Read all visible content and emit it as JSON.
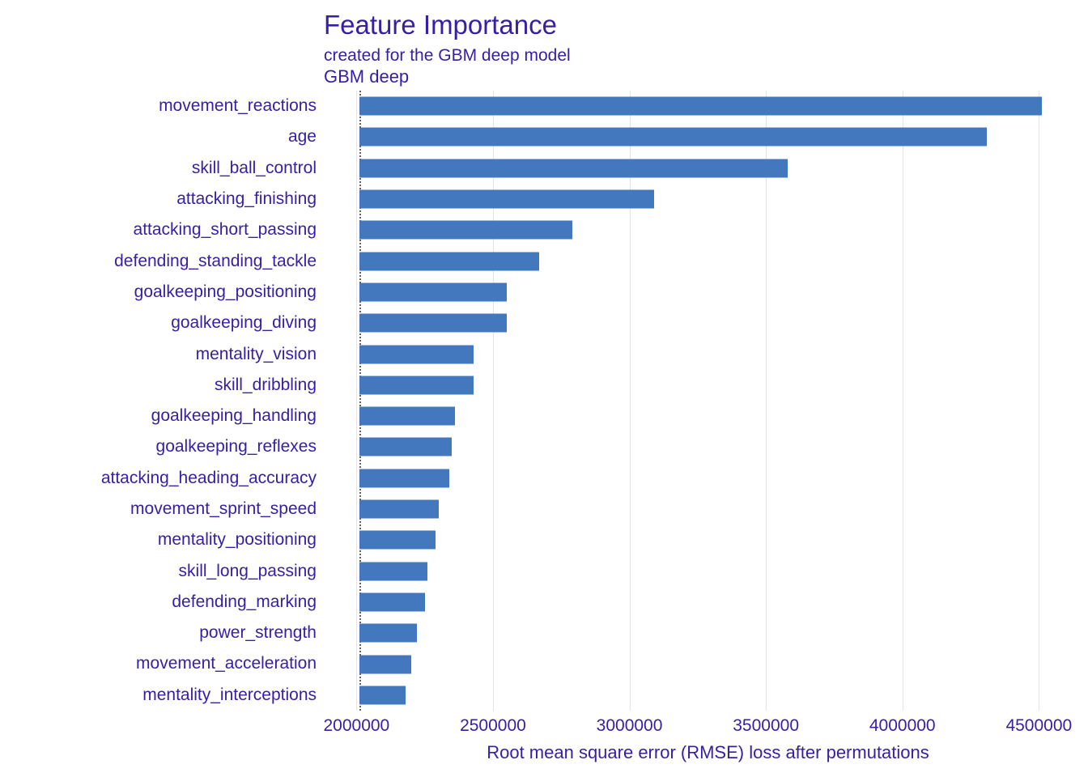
{
  "header": {
    "title": "Feature Importance",
    "subtitle": "created for the GBM deep model"
  },
  "chart_data": {
    "type": "bar",
    "orientation": "horizontal",
    "title": "Feature Importance",
    "subtitle": "created for the GBM deep model",
    "facet_label": "GBM deep",
    "xlabel": "Root mean square error (RMSE) loss after permutations",
    "ylabel": "",
    "grid": true,
    "legend": "none",
    "bar_color": "#4378bf",
    "text_color": "#371ea3",
    "gridline_color": "#e4e4e4",
    "xlim": [
      1990000,
      4585000
    ],
    "x_ticks": [
      2000000,
      2500000,
      3000000,
      3500000,
      4000000,
      4500000
    ],
    "x_tick_labels": [
      "2000000",
      "2500000",
      "3000000",
      "3500000",
      "4000000",
      "4500000"
    ],
    "bar_start": 2010000,
    "dashed_line_x": 2010000,
    "categories": [
      "movement_reactions",
      "age",
      "skill_ball_control",
      "attacking_finishing",
      "attacking_short_passing",
      "defending_standing_tackle",
      "goalkeeping_positioning",
      "goalkeeping_diving",
      "mentality_vision",
      "skill_dribbling",
      "goalkeeping_handling",
      "goalkeeping_reflexes",
      "attacking_heading_accuracy",
      "movement_sprint_speed",
      "mentality_positioning",
      "skill_long_passing",
      "defending_marking",
      "power_strength",
      "movement_acceleration",
      "mentality_interceptions"
    ],
    "values": [
      4510000,
      4310000,
      3580000,
      3090000,
      2790000,
      2670000,
      2550000,
      2550000,
      2430000,
      2430000,
      2360000,
      2350000,
      2340000,
      2300000,
      2290000,
      2260000,
      2250000,
      2220000,
      2200000,
      2180000
    ]
  }
}
